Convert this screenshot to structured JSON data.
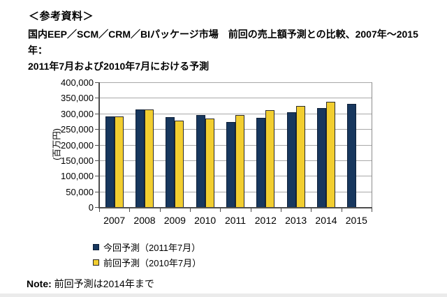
{
  "page": {
    "title": "＜参考資料＞",
    "subtitle_line1": "国内EEP／SCM／CRM／BIパッケージ市場　前回の売上額予測との比較、2007年～2015年：",
    "subtitle_line2": "2011年7月および2010年7月における予測",
    "note_label": "Note:",
    "note_text": " 前回予測は2014年まで"
  },
  "colors": {
    "current_forecast": "#17375E",
    "previous_forecast": "#F2CE30",
    "gridline": "#A8A8A8",
    "axis": "#4D4D4D"
  },
  "chart_data": {
    "type": "bar",
    "title": "国内EEP／SCM／CRM／BIパッケージ市場 前回の売上額予測との比較、2007年～2015年",
    "ylabel": "(百万円)",
    "xlabel": "",
    "categories": [
      "2007",
      "2008",
      "2009",
      "2010",
      "2011",
      "2012",
      "2013",
      "2014",
      "2015"
    ],
    "series": [
      {
        "name": "今回予測（2011年7月）",
        "color": "#17375E",
        "border_color": "#0D1F38",
        "values": [
          290000,
          313000,
          288000,
          295000,
          273000,
          285000,
          303000,
          318000,
          330000
        ]
      },
      {
        "name": "前回予測（2010年7月）",
        "color": "#F2CE30",
        "border_color": "#2B2B2B",
        "values": [
          290000,
          313000,
          277000,
          283000,
          296000,
          310000,
          324000,
          338000,
          null
        ]
      }
    ],
    "ylim": [
      0,
      400000
    ],
    "ytick_step": 50000,
    "grid": true,
    "legend_position": "bottom-left",
    "note": "前回予測は2014年まで"
  }
}
